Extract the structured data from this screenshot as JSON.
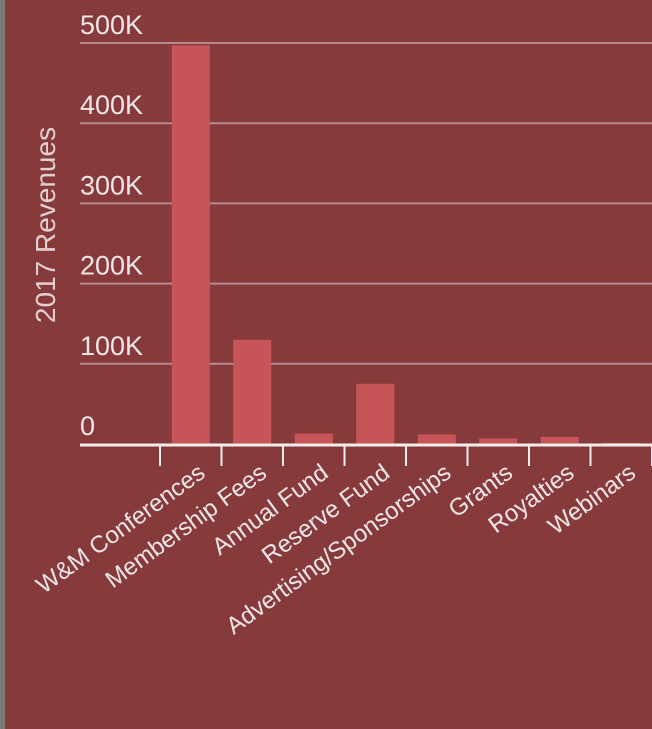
{
  "colors": {
    "background": "#863a3c",
    "bar": "#c75457",
    "gridline": "#b68b8c",
    "axis": "#f2eded",
    "text": "#f0e6e6"
  },
  "chart_data": {
    "type": "bar",
    "title": "",
    "xlabel": "",
    "ylabel": "2017 Revenues",
    "ylim": [
      0,
      500000
    ],
    "yticks": [
      0,
      100000,
      200000,
      300000,
      400000,
      500000
    ],
    "ytick_labels": [
      "0",
      "100K",
      "200K",
      "300K",
      "400K",
      "500K"
    ],
    "grid": true,
    "categories": [
      "W&M Conferences",
      "Membership Fees",
      "Annual Fund",
      "Reserve Fund",
      "Advertising/Sponsorships",
      "Grants",
      "Royalties",
      "Webinars"
    ],
    "values": [
      497000,
      130000,
      13000,
      75000,
      12000,
      7000,
      9000,
      1500
    ]
  }
}
